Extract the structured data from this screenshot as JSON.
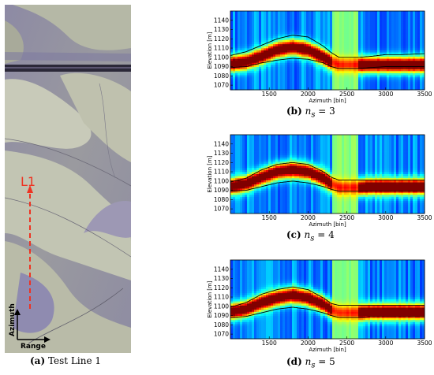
{
  "figure": {
    "panel_a": {
      "caption_label": "(a)",
      "caption_text": "Test Line 1",
      "line_label": "L1",
      "azimuth_label": "Azimuth",
      "range_label": "Range"
    },
    "panels": [
      {
        "label": "(b)",
        "ns_value": "3"
      },
      {
        "label": "(c)",
        "ns_value": "4"
      },
      {
        "label": "(d)",
        "ns_value": "5"
      }
    ],
    "ns_symbol": "n",
    "ns_sub": "s",
    "equals": " = "
  },
  "chart_data": [
    {
      "type": "heatmap",
      "title": "",
      "xlabel": "Azimuth [bin]",
      "ylabel": "Elevation [m]",
      "xlim": [
        1000,
        3500
      ],
      "ylim": [
        1065,
        1150
      ],
      "xticks": [
        1500,
        2000,
        2500,
        3000,
        3500
      ],
      "yticks": [
        1070,
        1080,
        1090,
        1100,
        1110,
        1120,
        1130,
        1140
      ],
      "bright_band": [
        2300,
        2650
      ],
      "upper_line": {
        "x": [
          1000,
          1200,
          1400,
          1600,
          1800,
          2000,
          2200,
          2300,
          2400,
          2650,
          2800,
          3000,
          3200,
          3500
        ],
        "y": [
          1102,
          1106,
          1113,
          1120,
          1124,
          1122,
          1112,
          1105,
          1100,
          1100,
          1101,
          1103,
          1103,
          1104
        ]
      },
      "lower_line": {
        "x": [
          1000,
          1200,
          1400,
          1600,
          1800,
          2000,
          2200,
          2300,
          2400,
          2650,
          2800,
          3000,
          3200,
          3500
        ],
        "y": [
          1089,
          1090,
          1094,
          1097,
          1099,
          1098,
          1094,
          1090,
          1088,
          1088,
          1089,
          1090,
          1090,
          1090
        ]
      },
      "ridge": {
        "x": [
          1000,
          1200,
          1400,
          1600,
          1800,
          2000,
          2200,
          2300,
          2400,
          2650,
          2800,
          3000,
          3200,
          3500
        ],
        "y": [
          1093,
          1095,
          1101,
          1108,
          1111,
          1108,
          1100,
          1095,
          1092,
          1092,
          1092,
          1092,
          1092,
          1092
        ]
      }
    },
    {
      "type": "heatmap",
      "title": "",
      "xlabel": "Azimuth [bin]",
      "ylabel": "Elevation [m]",
      "xlim": [
        1000,
        3500
      ],
      "ylim": [
        1065,
        1150
      ],
      "xticks": [
        1500,
        2000,
        2500,
        3000,
        3500
      ],
      "yticks": [
        1070,
        1080,
        1090,
        1100,
        1110,
        1120,
        1130,
        1140
      ],
      "bright_band": [
        2300,
        2650
      ],
      "upper_line": {
        "x": [
          1000,
          1200,
          1400,
          1600,
          1800,
          2000,
          2200,
          2300,
          2400,
          2650,
          2800,
          3000,
          3200,
          3500
        ],
        "y": [
          1099,
          1103,
          1112,
          1118,
          1120,
          1118,
          1110,
          1104,
          1101,
          1101,
          1101,
          1101,
          1101,
          1101
        ]
      },
      "lower_line": {
        "x": [
          1000,
          1200,
          1400,
          1600,
          1800,
          2000,
          2200,
          2300,
          2400,
          2650,
          2800,
          3000,
          3200,
          3500
        ],
        "y": [
          1089,
          1090,
          1094,
          1098,
          1100,
          1098,
          1094,
          1091,
          1089,
          1089,
          1089,
          1089,
          1089,
          1089
        ]
      },
      "ridge": {
        "x": [
          1000,
          1200,
          1400,
          1600,
          1800,
          2000,
          2200,
          2300,
          2400,
          2650,
          2800,
          3000,
          3200,
          3500
        ],
        "y": [
          1094,
          1097,
          1104,
          1110,
          1112,
          1110,
          1103,
          1097,
          1093,
          1093,
          1094,
          1094,
          1094,
          1094
        ]
      }
    },
    {
      "type": "heatmap",
      "title": "",
      "xlabel": "Azimuth [bin]",
      "ylabel": "Elevation [m]",
      "xlim": [
        1000,
        3500
      ],
      "ylim": [
        1065,
        1150
      ],
      "xticks": [
        1500,
        2000,
        2500,
        3000,
        3500
      ],
      "yticks": [
        1070,
        1080,
        1090,
        1100,
        1110,
        1120,
        1130,
        1140
      ],
      "bright_band": [
        2300,
        2650
      ],
      "upper_line": {
        "x": [
          1000,
          1200,
          1400,
          1600,
          1800,
          2000,
          2200,
          2300,
          2400,
          2650,
          2800,
          3000,
          3200,
          3500
        ],
        "y": [
          1099,
          1104,
          1113,
          1118,
          1121,
          1118,
          1109,
          1103,
          1101,
          1101,
          1101,
          1101,
          1101,
          1101
        ]
      },
      "lower_line": {
        "x": [
          1000,
          1200,
          1400,
          1600,
          1800,
          2000,
          2200,
          2300,
          2400,
          2650,
          2800,
          3000,
          3200,
          3500
        ],
        "y": [
          1088,
          1089,
          1093,
          1097,
          1099,
          1097,
          1093,
          1090,
          1088,
          1088,
          1089,
          1089,
          1089,
          1089
        ]
      },
      "ridge": {
        "x": [
          1000,
          1200,
          1400,
          1600,
          1800,
          2000,
          2200,
          2300,
          2400,
          2650,
          2800,
          3000,
          3200,
          3500
        ],
        "y": [
          1094,
          1097,
          1104,
          1109,
          1112,
          1109,
          1102,
          1096,
          1093,
          1093,
          1094,
          1094,
          1094,
          1094
        ]
      }
    }
  ]
}
